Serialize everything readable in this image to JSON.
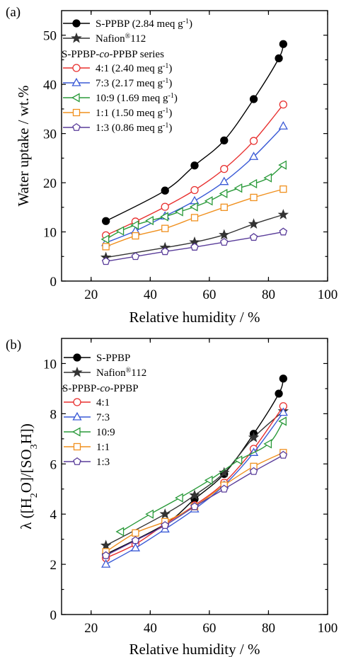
{
  "chart_data": [
    {
      "type": "line",
      "panel_label": "(a)",
      "xlabel": "Relative humidity / %",
      "ylabel": "Water uptake / wt.%",
      "xlim": [
        10,
        100
      ],
      "ylim": [
        0,
        55
      ],
      "xticks": [
        20,
        40,
        60,
        80,
        100
      ],
      "yticks": [
        0,
        10,
        20,
        30,
        40,
        50
      ],
      "grid": false,
      "legend_position": "top-left",
      "legend_group_title": {
        "main": "S-PPBP-",
        "italic": "co",
        "tail": "-PPBP series"
      },
      "series": [
        {
          "name": "S-PPBP",
          "label_suffix": "(2.84 meq g",
          "sup": "-1",
          "close": ")",
          "color": "#000000",
          "marker": "circle",
          "filled": true,
          "x": [
            25,
            45,
            55,
            65,
            75,
            83.5,
            85
          ],
          "y": [
            12.2,
            18.4,
            23.5,
            28.6,
            37,
            45.3,
            48.2
          ]
        },
        {
          "name": "Nafion",
          "sup": "®",
          "tail": "112",
          "color": "#333333",
          "marker": "star",
          "filled": true,
          "x": [
            25,
            45,
            55,
            65,
            75,
            85
          ],
          "y": [
            4.8,
            6.8,
            7.9,
            9.4,
            11.6,
            13.5
          ]
        },
        {
          "name": "4:1",
          "label_suffix": "(2.40 meq g",
          "sup": "-1",
          "close": ")",
          "color": "#e8302f",
          "marker": "circle",
          "filled": false,
          "x": [
            25,
            35,
            45,
            55,
            65,
            75,
            85
          ],
          "y": [
            9.3,
            12.1,
            15.1,
            18.5,
            22.8,
            28.5,
            35.9
          ]
        },
        {
          "name": "7:3",
          "label_suffix": "(2.17 meq g",
          "sup": "-1",
          "close": ")",
          "color": "#3a5ad6",
          "marker": "triangle-up",
          "filled": false,
          "x": [
            25,
            35,
            45,
            55,
            65,
            75,
            85
          ],
          "y": [
            7.8,
            10.2,
            13.2,
            16.3,
            20.2,
            25.3,
            31.5
          ]
        },
        {
          "name": "10:9",
          "label_suffix": "(1.69 meq g",
          "sup": "-1",
          "close": ")",
          "color": "#2a9a3a",
          "marker": "triangle-left",
          "filled": false,
          "x": [
            25,
            30,
            35,
            40,
            45,
            50,
            55,
            60,
            65,
            70,
            75,
            80,
            85
          ],
          "y": [
            8.5,
            10.2,
            11.4,
            12.3,
            13.1,
            14.1,
            15.1,
            16.3,
            17.8,
            18.9,
            19.8,
            21,
            23.6
          ]
        },
        {
          "name": "1:1",
          "label_suffix": "(1.50 meq g",
          "sup": "-1",
          "close": ")",
          "color": "#f0901e",
          "marker": "square",
          "filled": false,
          "x": [
            25,
            35,
            45,
            55,
            65,
            75,
            85
          ],
          "y": [
            7,
            9.2,
            10.7,
            12.9,
            15,
            17,
            18.7
          ]
        },
        {
          "name": "1:3",
          "label_suffix": "(0.86 meq g",
          "sup": "-1",
          "close": ")",
          "color": "#5a3d9a",
          "marker": "pentagon",
          "filled": false,
          "x": [
            25,
            35,
            45,
            55,
            65,
            75,
            85
          ],
          "y": [
            4,
            5,
            6,
            6.9,
            7.9,
            8.9,
            10
          ]
        }
      ]
    },
    {
      "type": "line",
      "panel_label": "(b)",
      "xlabel": "Relative humidity / %",
      "ylabel": "λ ([H2O]/[SO3H])",
      "xlim": [
        10,
        100
      ],
      "ylim": [
        0,
        11
      ],
      "xticks": [
        20,
        40,
        60,
        80,
        100
      ],
      "yticks": [
        0,
        2,
        4,
        6,
        8,
        10
      ],
      "grid": false,
      "legend_position": "top-left",
      "legend_group_title": {
        "main": "S-PPBP-",
        "italic": "co",
        "tail": "-PPBP"
      },
      "series": [
        {
          "name": "S-PPBP",
          "color": "#000000",
          "marker": "circle",
          "filled": true,
          "x": [
            25,
            45,
            55,
            65,
            75,
            83.5,
            85
          ],
          "y": [
            2.4,
            3.6,
            4.6,
            5.6,
            7.2,
            8.8,
            9.4
          ]
        },
        {
          "name": "Nafion",
          "sup": "®",
          "tail": "112",
          "color": "#333333",
          "marker": "star",
          "filled": true,
          "x": [
            25,
            45,
            55,
            65,
            75,
            85
          ],
          "y": [
            2.75,
            4.0,
            4.75,
            5.65,
            7.05,
            8.1
          ]
        },
        {
          "name": "4:1",
          "color": "#e8302f",
          "marker": "circle",
          "filled": false,
          "x": [
            25,
            35,
            45,
            55,
            65,
            75,
            85
          ],
          "y": [
            2.25,
            2.8,
            3.6,
            4.35,
            5.25,
            6.6,
            8.3
          ]
        },
        {
          "name": "7:3",
          "color": "#3a5ad6",
          "marker": "triangle-up",
          "filled": false,
          "x": [
            25,
            35,
            45,
            55,
            65,
            75,
            85
          ],
          "y": [
            2.0,
            2.65,
            3.4,
            4.2,
            5.15,
            6.45,
            8.05
          ]
        },
        {
          "name": "10:9",
          "color": "#2a9a3a",
          "marker": "triangle-left",
          "filled": false,
          "x": [
            30,
            40,
            50,
            60,
            70,
            80,
            85
          ],
          "y": [
            3.3,
            4.0,
            4.65,
            5.35,
            6.15,
            6.8,
            7.7
          ]
        },
        {
          "name": "1:1",
          "color": "#f0901e",
          "marker": "square",
          "filled": false,
          "x": [
            25,
            35,
            45,
            55,
            65,
            75,
            85
          ],
          "y": [
            2.5,
            3.25,
            3.7,
            4.3,
            5.15,
            5.9,
            6.45
          ]
        },
        {
          "name": "1:3",
          "color": "#5a3d9a",
          "marker": "pentagon",
          "filled": false,
          "x": [
            25,
            35,
            45,
            55,
            65,
            75,
            85
          ],
          "y": [
            2.35,
            2.95,
            3.55,
            4.3,
            5.0,
            5.7,
            6.35
          ]
        }
      ]
    }
  ]
}
